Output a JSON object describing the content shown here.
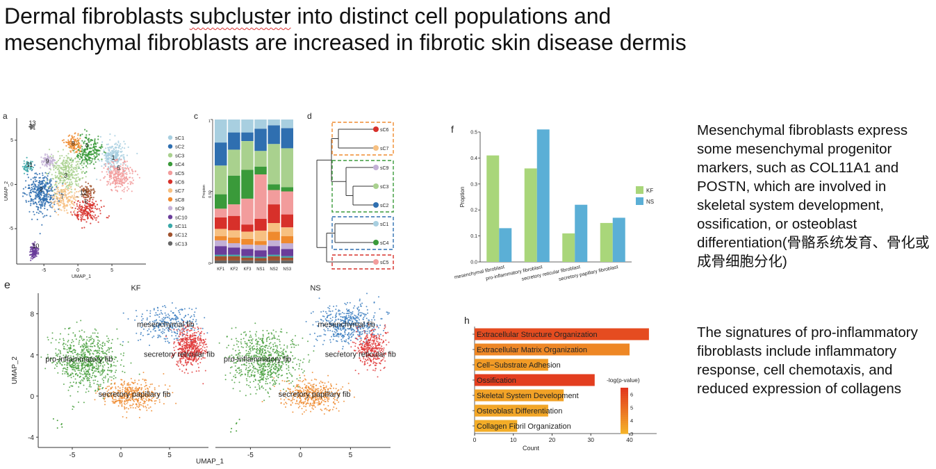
{
  "slide": {
    "title_line1_pre": "Dermal fibroblasts ",
    "title_line1_squig": "subcluster",
    "title_line1_post": " into distinct cell populations and",
    "title_line2": "mesenchymal fibroblasts are increased in fibrotic skin disease dermis",
    "text_right_1": "Mesenchymal fibroblasts express some mesenchymal progenitor markers, such as COL11A1 and POSTN, which are involved in skeletal system development, ossification, or osteoblast differentiation(骨骼系统发育、骨化或成骨细胞分化)",
    "text_right_2": "The signatures of pro-inflammatory fibroblasts include inflammatory response, cell chemotaxis, and reduced expression of collagens"
  },
  "panel_letters": {
    "a": "a",
    "c": "c",
    "d": "d",
    "f": "f",
    "e": "e",
    "h": "h"
  },
  "chart_data": [
    {
      "id": "a",
      "type": "scatter",
      "xlabel": "UMAP_1",
      "ylabel": "UMAP_2",
      "xticks": [
        "-5",
        "0",
        "5"
      ],
      "yticks": [
        "5",
        "0",
        "-5"
      ],
      "xlim": [
        -9,
        10
      ],
      "ylim": [
        -9,
        7.5
      ],
      "cluster_labels": [
        "1",
        "2",
        "3",
        "4",
        "5",
        "6",
        "7",
        "8",
        "9",
        "10",
        "11",
        "12",
        "13"
      ],
      "legend": [
        "sC1",
        "sC2",
        "sC3",
        "sC4",
        "sC5",
        "sC6",
        "sC7",
        "sC8",
        "sC9",
        "sC10",
        "sC11",
        "sC12",
        "sC13"
      ],
      "colors": [
        "#a8cfe0",
        "#2f6fb0",
        "#a9d18e",
        "#3a9a3a",
        "#f29c9c",
        "#d7302a",
        "#f7c081",
        "#ef8a2e",
        "#c3b0d6",
        "#6a3d9a",
        "#3aa8a8",
        "#a0522d",
        "#666666"
      ],
      "clusters": [
        {
          "cx": 5.2,
          "cy": 3.2,
          "sx": 1.2,
          "sy": 1.0,
          "n": 260,
          "ci": 0
        },
        {
          "cx": -5.3,
          "cy": -1.0,
          "sx": 1.5,
          "sy": 1.5,
          "n": 380,
          "ci": 1
        },
        {
          "cx": -1.8,
          "cy": 1.4,
          "sx": 1.6,
          "sy": 1.4,
          "n": 320,
          "ci": 2
        },
        {
          "cx": 1.6,
          "cy": 3.7,
          "sx": 1.2,
          "sy": 1.1,
          "n": 230,
          "ci": 3
        },
        {
          "cx": 6.0,
          "cy": 1.0,
          "sx": 1.4,
          "sy": 1.1,
          "n": 260,
          "ci": 4
        },
        {
          "cx": 1.5,
          "cy": -2.9,
          "sx": 1.4,
          "sy": 0.9,
          "n": 190,
          "ci": 5
        },
        {
          "cx": -2.0,
          "cy": -1.6,
          "sx": 1.2,
          "sy": 1.0,
          "n": 170,
          "ci": 6
        },
        {
          "cx": -0.6,
          "cy": 4.6,
          "sx": 0.7,
          "sy": 0.6,
          "n": 110,
          "ci": 7
        },
        {
          "cx": -4.3,
          "cy": 2.6,
          "sx": 0.7,
          "sy": 0.5,
          "n": 90,
          "ci": 8
        },
        {
          "cx": -6.5,
          "cy": -7.6,
          "sx": 0.4,
          "sy": 0.5,
          "n": 120,
          "ci": 9
        },
        {
          "cx": -7.5,
          "cy": 2.0,
          "sx": 0.5,
          "sy": 0.5,
          "n": 50,
          "ci": 10
        },
        {
          "cx": 1.3,
          "cy": -0.9,
          "sx": 0.7,
          "sy": 0.6,
          "n": 80,
          "ci": 11
        },
        {
          "cx": -6.8,
          "cy": 6.4,
          "sx": 0.25,
          "sy": 0.25,
          "n": 25,
          "ci": 12
        }
      ],
      "label_pos": [
        [
          5.2,
          2.8
        ],
        [
          -5.4,
          -0.8
        ],
        [
          -1.8,
          0.8
        ],
        [
          1.3,
          4.2
        ],
        [
          6.0,
          1.6
        ],
        [
          1.2,
          -2.2
        ],
        [
          -2.3,
          -1.6
        ],
        [
          -0.7,
          4.4
        ],
        [
          -4.5,
          2.4
        ],
        [
          -6.2,
          -7.2
        ],
        [
          -7.1,
          2.0
        ],
        [
          0.8,
          -1.2
        ],
        [
          -6.7,
          6.7
        ]
      ]
    },
    {
      "id": "c",
      "type": "bar",
      "stacked": true,
      "ylabel": "Propion",
      "ytick_labels": [
        "1",
        "0.50",
        "0"
      ],
      "ylim": [
        0,
        1
      ],
      "categories": [
        "KF1",
        "KF2",
        "KF3",
        "NS1",
        "NS2",
        "NS3"
      ],
      "segment_colors": [
        "#666666",
        "#a0522d",
        "#3aa8a8",
        "#6a3d9a",
        "#c3b0d6",
        "#ef8a2e",
        "#f7c081",
        "#d7302a",
        "#f29c9c",
        "#3a9a3a",
        "#a9d18e",
        "#2f6fb0",
        "#a8cfe0"
      ],
      "stacks": [
        [
          0.02,
          0.03,
          0.01,
          0.06,
          0.04,
          0.03,
          0.05,
          0.08,
          0.06,
          0.1,
          0.2,
          0.16,
          0.16
        ],
        [
          0.02,
          0.03,
          0.01,
          0.05,
          0.03,
          0.04,
          0.05,
          0.1,
          0.08,
          0.2,
          0.18,
          0.12,
          0.09
        ],
        [
          0.02,
          0.02,
          0.01,
          0.05,
          0.03,
          0.04,
          0.05,
          0.05,
          0.18,
          0.2,
          0.2,
          0.06,
          0.09
        ],
        [
          0.02,
          0.02,
          0.01,
          0.05,
          0.04,
          0.03,
          0.08,
          0.09,
          0.34,
          0.06,
          0.12,
          0.17,
          0.07
        ],
        [
          0.02,
          0.03,
          0.01,
          0.06,
          0.04,
          0.06,
          0.06,
          0.13,
          0.1,
          0.04,
          0.28,
          0.13,
          0.04
        ],
        [
          0.02,
          0.02,
          0.01,
          0.05,
          0.04,
          0.05,
          0.06,
          0.09,
          0.16,
          0.03,
          0.27,
          0.14,
          0.06
        ]
      ]
    },
    {
      "id": "d",
      "type": "dendrogram",
      "leaves": [
        "sC6",
        "sC7",
        "sC9",
        "sC3",
        "sC2",
        "sC1",
        "sC4",
        "sC5"
      ],
      "leaf_colors": [
        "#d7302a",
        "#f7c081",
        "#c3b0d6",
        "#a9d18e",
        "#2f6fb0",
        "#a8cfe0",
        "#3a9a3a",
        "#f29c9c"
      ],
      "groups": [
        {
          "from": 0,
          "to": 1,
          "color": "#ef8a2e"
        },
        {
          "from": 2,
          "to": 4,
          "color": "#3a9a3a"
        },
        {
          "from": 5,
          "to": 6,
          "color": "#2f6fb0"
        },
        {
          "from": 7,
          "to": 7,
          "color": "#d7302a"
        }
      ]
    },
    {
      "id": "f",
      "type": "bar",
      "ylabel": "Proption",
      "ylim": [
        0,
        0.5
      ],
      "yticks": [
        "0.0",
        "0.1",
        "0.2",
        "0.3",
        "0.4",
        "0.5"
      ],
      "categories": [
        "mesenchymal fibroblast",
        "pro-inflammatory fibroblast",
        "secretory reticular fibroblast",
        "secretory papillary fibroblast"
      ],
      "series": [
        {
          "name": "KF",
          "color": "#a9d67a",
          "values": [
            0.41,
            0.36,
            0.11,
            0.15
          ]
        },
        {
          "name": "NS",
          "color": "#5bafd6",
          "values": [
            0.13,
            0.51,
            0.22,
            0.17
          ]
        }
      ],
      "legend_placement": "right"
    },
    {
      "id": "e",
      "type": "scatter",
      "panels": [
        "KF",
        "NS"
      ],
      "xlabel": "UMAP_1",
      "ylabel": "UMAP_2",
      "xticks": [
        "-5",
        "0",
        "5"
      ],
      "yticks": [
        "8",
        "4",
        "0",
        "-4"
      ],
      "xlim": [
        -8.5,
        9
      ],
      "ylim": [
        -5,
        10
      ],
      "cluster_names": [
        "mesenchymal fib",
        "pro-inflammatory fib",
        "secretory reticular fib",
        "secretory papillary fib"
      ],
      "colors": [
        "#3a7cbf",
        "#4aa03f",
        "#e03a3a",
        "#ef8a2e"
      ]
    },
    {
      "id": "h",
      "type": "bar",
      "orientation": "horizontal",
      "xlabel": "Count",
      "xticks": [
        "0",
        "10",
        "20",
        "30",
        "40"
      ],
      "xlim": [
        0,
        47
      ],
      "categories": [
        "Extracellular Structure Organization",
        "Extracellular Matrix Organization",
        "Cell−Substrate Adhesion",
        "Ossification",
        "Skeletal System Development",
        "Osteoblast Differentiation",
        "Collagen Fibril Organization"
      ],
      "values": [
        45,
        40,
        19,
        31,
        23,
        19,
        11
      ],
      "neglogp": [
        5.9,
        4.2,
        3.6,
        6.3,
        3.4,
        3.3,
        3.1
      ],
      "colorbar_title": "-log(p-value)",
      "colorbar_ticks": [
        "6",
        "5",
        "4",
        "3"
      ]
    }
  ]
}
